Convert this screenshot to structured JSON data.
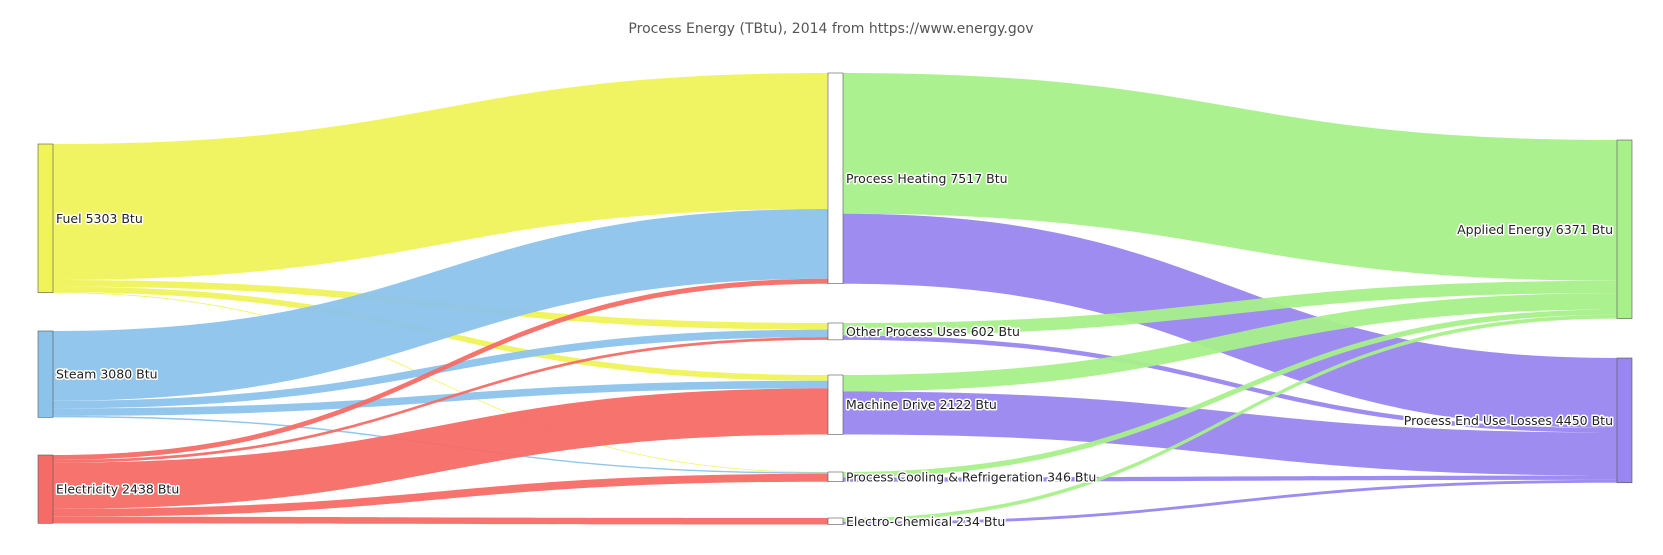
{
  "chart_data": {
    "type": "sankey",
    "title": "Process Energy (TBtu), 2014 from https://www.energy.gov",
    "nodes": [
      {
        "id": "fuel",
        "label": "Fuel 5303 Btu",
        "value": 5303,
        "column": 0,
        "color": "#f0f35a"
      },
      {
        "id": "steam",
        "label": "Steam 3080 Btu",
        "value": 3080,
        "column": 0,
        "color": "#8cc3eb"
      },
      {
        "id": "electricity",
        "label": "Electricity 2438 Btu",
        "value": 2438,
        "column": 0,
        "color": "#f56c66"
      },
      {
        "id": "heating",
        "label": "Process Heating 7517 Btu",
        "value": 7517,
        "column": 1,
        "color": "#ffffff"
      },
      {
        "id": "other",
        "label": "Other Process Uses 602 Btu",
        "value": 602,
        "column": 1,
        "color": "#ffffff"
      },
      {
        "id": "machine",
        "label": "Machine Drive 2122 Btu",
        "value": 2122,
        "column": 1,
        "color": "#ffffff"
      },
      {
        "id": "cooling",
        "label": "Process Cooling & Refrigeration 346 Btu",
        "value": 346,
        "column": 1,
        "color": "#ffffff"
      },
      {
        "id": "electrochem",
        "label": "Electro-Chemical 234 Btu",
        "value": 234,
        "column": 1,
        "color": "#ffffff"
      },
      {
        "id": "applied",
        "label": "Applied Energy 6371 Btu",
        "value": 6371,
        "column": 2,
        "color": "#a8f08a"
      },
      {
        "id": "losses",
        "label": "Process End Use Losses 4450 Btu",
        "value": 4450,
        "column": 2,
        "color": "#9a86f0"
      }
    ],
    "links": [
      {
        "source": "fuel",
        "target": "heating",
        "value": 4850,
        "color": "#f0f35a"
      },
      {
        "source": "fuel",
        "target": "other",
        "value": 235,
        "color": "#f0f35a"
      },
      {
        "source": "fuel",
        "target": "machine",
        "value": 205,
        "color": "#f0f35a"
      },
      {
        "source": "fuel",
        "target": "cooling",
        "value": 13,
        "color": "#f0f35a"
      },
      {
        "source": "steam",
        "target": "heating",
        "value": 2490,
        "color": "#8cc3eb"
      },
      {
        "source": "steam",
        "target": "other",
        "value": 270,
        "color": "#8cc3eb"
      },
      {
        "source": "steam",
        "target": "machine",
        "value": 270,
        "color": "#8cc3eb"
      },
      {
        "source": "steam",
        "target": "cooling",
        "value": 50,
        "color": "#8cc3eb"
      },
      {
        "source": "electricity",
        "target": "heating",
        "value": 177,
        "color": "#f56c66"
      },
      {
        "source": "electricity",
        "target": "other",
        "value": 97,
        "color": "#f56c66"
      },
      {
        "source": "electricity",
        "target": "machine",
        "value": 1647,
        "color": "#f56c66"
      },
      {
        "source": "electricity",
        "target": "cooling",
        "value": 283,
        "color": "#f56c66"
      },
      {
        "source": "electricity",
        "target": "electrochem",
        "value": 234,
        "color": "#f56c66"
      },
      {
        "source": "heating",
        "target": "applied",
        "value": 5020,
        "color": "#a8f08a"
      },
      {
        "source": "heating",
        "target": "losses",
        "value": 2497,
        "color": "#9a86f0"
      },
      {
        "source": "other",
        "target": "applied",
        "value": 442,
        "color": "#a8f08a"
      },
      {
        "source": "other",
        "target": "losses",
        "value": 160,
        "color": "#9a86f0"
      },
      {
        "source": "machine",
        "target": "applied",
        "value": 585,
        "color": "#a8f08a"
      },
      {
        "source": "machine",
        "target": "losses",
        "value": 1537,
        "color": "#9a86f0"
      },
      {
        "source": "cooling",
        "target": "applied",
        "value": 192,
        "color": "#a8f08a"
      },
      {
        "source": "cooling",
        "target": "losses",
        "value": 154,
        "color": "#9a86f0"
      },
      {
        "source": "electrochem",
        "target": "applied",
        "value": 132,
        "color": "#a8f08a"
      },
      {
        "source": "electrochem",
        "target": "losses",
        "value": 102,
        "color": "#9a86f0"
      }
    ]
  }
}
